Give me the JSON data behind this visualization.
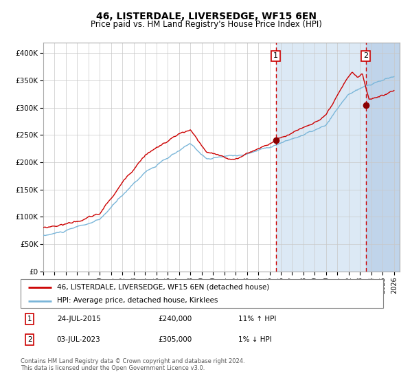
{
  "title": "46, LISTERDALE, LIVERSEDGE, WF15 6EN",
  "subtitle": "Price paid vs. HM Land Registry's House Price Index (HPI)",
  "ylim": [
    0,
    420000
  ],
  "yticks": [
    0,
    50000,
    100000,
    150000,
    200000,
    250000,
    300000,
    350000,
    400000
  ],
  "sale1_date": 2015.55,
  "sale1_price": 240000,
  "sale2_date": 2023.5,
  "sale2_price": 305000,
  "hpi_color": "#7ab6d9",
  "price_color": "#cc0000",
  "sale_dot_color": "#8b0000",
  "bg_color": "#ffffff",
  "shaded_region_color": "#dce9f5",
  "hatch_region_color": "#c0d4ea",
  "grid_color": "#c8c8c8",
  "legend_label_price": "46, LISTERDALE, LIVERSEDGE, WF15 6EN (detached house)",
  "legend_label_hpi": "HPI: Average price, detached house, Kirklees",
  "annotation1": [
    "1",
    "24-JUL-2015",
    "£240,000",
    "11% ↑ HPI"
  ],
  "annotation2": [
    "2",
    "03-JUL-2023",
    "£305,000",
    "1% ↓ HPI"
  ],
  "footer": "Contains HM Land Registry data © Crown copyright and database right 2024.\nThis data is licensed under the Open Government Licence v3.0."
}
